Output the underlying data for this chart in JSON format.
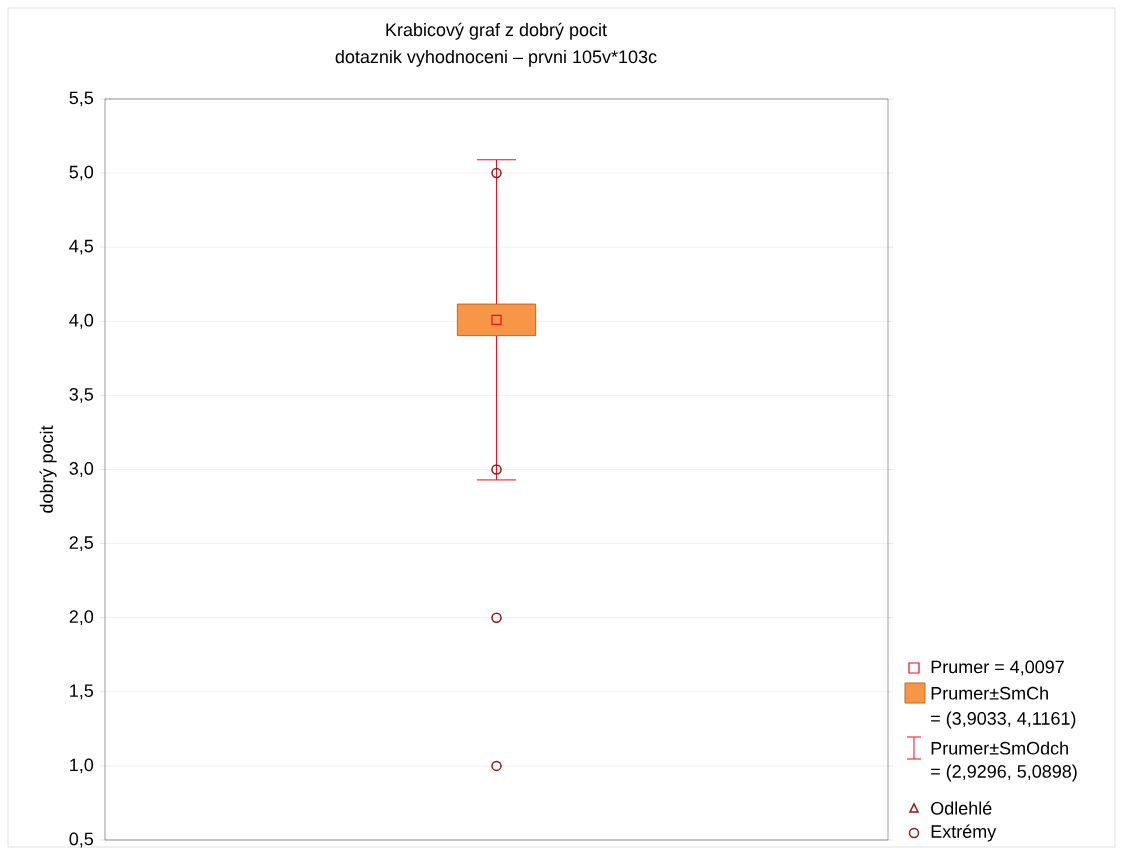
{
  "chart_data": {
    "type": "box",
    "title": "Krabicový graf z dobrý pocit",
    "subtitle": "dotaznik vyhodnoceni – prvni 105v*103c",
    "ylabel": "dobrý pocit",
    "categories": [
      null
    ],
    "color": "#f79646",
    "boxes": [
      {
        "low": 2.9296,
        "q1": 3.9033,
        "median": 4.0097,
        "q3": 4.1161,
        "high": 5.0898,
        "outliers": [
          5,
          3,
          2,
          1
        ]
      }
    ],
    "ylim": [
      0.5,
      5.5
    ],
    "yticks": [
      {
        "value": 0.5,
        "label": "0,5"
      },
      {
        "value": 1,
        "label": "1,0"
      },
      {
        "value": 1.5,
        "label": "1,5"
      },
      {
        "value": 2,
        "label": "2,0"
      },
      {
        "value": 2.5,
        "label": "2,5"
      },
      {
        "value": 3,
        "label": "3,0"
      },
      {
        "value": 3.5,
        "label": "3,5"
      },
      {
        "value": 4,
        "label": "4,0"
      },
      {
        "value": 4.5,
        "label": "4,5"
      },
      {
        "value": 5,
        "label": "5,0"
      },
      {
        "value": 5.5,
        "label": "5,5"
      }
    ],
    "grid": "y",
    "annotations": [
      "Prumer = 4,0097",
      "Prumer±SmCh",
      "= (3,9033, 4,1161)",
      "Prumer±SmOdch",
      "= (2,9296, 5,0898)",
      "Odlehlé",
      "Extrémy"
    ]
  }
}
